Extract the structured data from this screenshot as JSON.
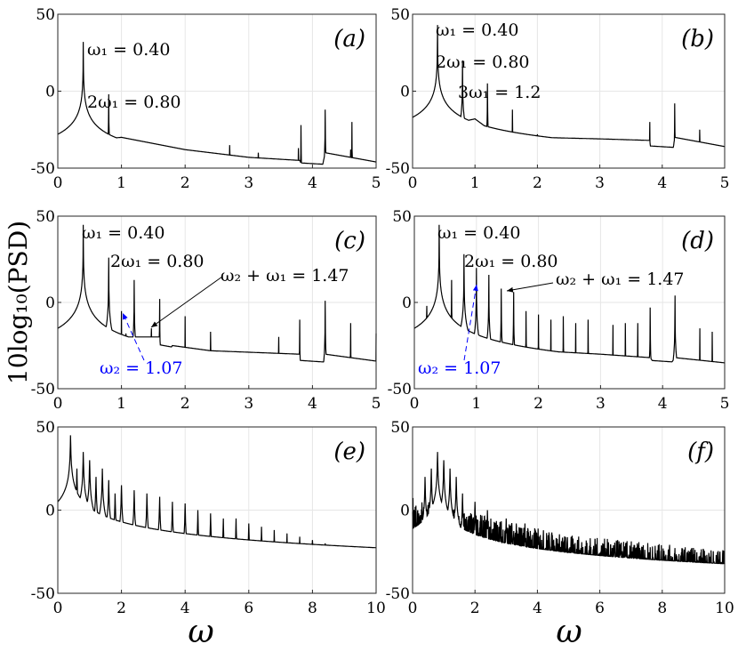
{
  "figure": {
    "ylabel": "10log₁₀(PSD)",
    "xlabel_left": "ω",
    "xlabel_right": "ω"
  },
  "colors": {
    "line": "#000000",
    "annotation_blue": "#0000ff",
    "grid": "#e6e6e6"
  },
  "chart_data": [
    {
      "id": "a",
      "type": "line",
      "panel_label": "(a)",
      "xlim": [
        0,
        5
      ],
      "ylim": [
        -50,
        50
      ],
      "grid": true,
      "xticks": [
        0,
        1,
        2,
        3,
        4,
        5
      ],
      "yticks": [
        -50,
        0,
        50
      ],
      "baseline": [
        [
          0,
          -37
        ],
        [
          0.2,
          -33
        ],
        [
          1,
          -30
        ],
        [
          2,
          -38
        ],
        [
          3,
          -43
        ],
        [
          3.8,
          -45
        ],
        [
          3.85,
          -50
        ],
        [
          4.15,
          -50
        ],
        [
          4.2,
          -40
        ],
        [
          5,
          -46
        ]
      ],
      "peaks": [
        [
          0.4,
          32
        ],
        [
          0.8,
          -2
        ],
        [
          1.2,
          -32
        ],
        [
          2.7,
          -35
        ],
        [
          3.15,
          -40
        ],
        [
          3.78,
          -37
        ],
        [
          3.82,
          -22
        ],
        [
          4.2,
          -12
        ],
        [
          4.6,
          -38
        ],
        [
          4.62,
          -20
        ]
      ],
      "annotations": [
        {
          "text": "ω₁ = 0.40",
          "color": "#000000"
        },
        {
          "text": "2ω₁ = 0.80",
          "color": "#000000"
        }
      ]
    },
    {
      "id": "b",
      "type": "line",
      "panel_label": "(b)",
      "xlim": [
        0,
        5
      ],
      "ylim": [
        -50,
        50
      ],
      "grid": true,
      "xticks": [
        0,
        1,
        2,
        3,
        4,
        5
      ],
      "yticks": [
        -50,
        0,
        50
      ],
      "baseline": [
        [
          0,
          -27
        ],
        [
          1,
          -18
        ],
        [
          1.2,
          -24
        ],
        [
          1.6,
          -28
        ],
        [
          2,
          -30
        ],
        [
          3,
          -31
        ],
        [
          3.8,
          -32
        ],
        [
          3.85,
          -50
        ],
        [
          4.15,
          -45
        ],
        [
          4.2,
          -30
        ],
        [
          5,
          -36
        ]
      ],
      "peaks": [
        [
          0.4,
          43
        ],
        [
          0.8,
          20
        ],
        [
          1.2,
          5
        ],
        [
          1.6,
          -12
        ],
        [
          2.0,
          -28
        ],
        [
          3.8,
          -20
        ],
        [
          4.2,
          -8
        ],
        [
          4.6,
          -25
        ]
      ],
      "annotations": [
        {
          "text": "ω₁ = 0.40",
          "color": "#000000"
        },
        {
          "text": "2ω₁ = 0.80",
          "color": "#000000"
        },
        {
          "text": "3ω₁ = 1.2",
          "color": "#000000"
        }
      ]
    },
    {
      "id": "c",
      "type": "line",
      "panel_label": "(c)",
      "xlim": [
        0,
        5
      ],
      "ylim": [
        -50,
        50
      ],
      "grid": true,
      "xticks": [
        0,
        1,
        2,
        3,
        4,
        5
      ],
      "yticks": [
        -50,
        0,
        50
      ],
      "baseline": [
        [
          0,
          -25
        ],
        [
          0.3,
          -10
        ],
        [
          1,
          -20
        ],
        [
          1.6,
          -20
        ],
        [
          1.62,
          -35
        ],
        [
          1.8,
          -25
        ],
        [
          2.4,
          -28
        ],
        [
          3.8,
          -30
        ],
        [
          3.85,
          -50
        ],
        [
          4.15,
          -45
        ],
        [
          4.2,
          -30
        ],
        [
          5,
          -34
        ]
      ],
      "peaks": [
        [
          0.4,
          45
        ],
        [
          0.6,
          -15
        ],
        [
          0.8,
          26
        ],
        [
          1.0,
          -5
        ],
        [
          1.07,
          -18
        ],
        [
          1.2,
          13
        ],
        [
          1.47,
          -15
        ],
        [
          1.6,
          2
        ],
        [
          2.0,
          -8
        ],
        [
          2.2,
          -35
        ],
        [
          2.4,
          -17
        ],
        [
          3.47,
          -20
        ],
        [
          3.8,
          -10
        ],
        [
          4.2,
          1
        ],
        [
          4.6,
          -12
        ],
        [
          5,
          -18
        ]
      ],
      "annotations": [
        {
          "text": "ω₁ = 0.40",
          "color": "#000000"
        },
        {
          "text": "2ω₁ = 0.80",
          "color": "#000000"
        },
        {
          "text": "ω₂ + ω₁ = 1.47",
          "color": "#000000"
        },
        {
          "text": "ω₂ = 1.07",
          "color": "#0000ff"
        }
      ]
    },
    {
      "id": "d",
      "type": "line",
      "panel_label": "(d)",
      "xlim": [
        0,
        5
      ],
      "ylim": [
        -50,
        50
      ],
      "grid": true,
      "xticks": [
        0,
        1,
        2,
        3,
        4,
        5
      ],
      "yticks": [
        -50,
        0,
        50
      ],
      "baseline": [
        [
          0,
          -25
        ],
        [
          1,
          -18
        ],
        [
          1.5,
          -30
        ],
        [
          2,
          -28
        ],
        [
          3,
          -30
        ],
        [
          3.8,
          -32
        ],
        [
          4,
          -42
        ],
        [
          4.2,
          -32
        ],
        [
          5,
          -35
        ]
      ],
      "peaks": [
        [
          0.2,
          -2
        ],
        [
          0.4,
          45
        ],
        [
          0.6,
          13
        ],
        [
          0.8,
          28
        ],
        [
          1.0,
          20
        ],
        [
          1.2,
          16
        ],
        [
          1.4,
          8
        ],
        [
          1.6,
          6
        ],
        [
          1.8,
          -5
        ],
        [
          2.0,
          -7
        ],
        [
          2.2,
          -10
        ],
        [
          2.4,
          -8
        ],
        [
          2.6,
          -12
        ],
        [
          2.8,
          -10
        ],
        [
          3.2,
          -13
        ],
        [
          3.4,
          -12
        ],
        [
          3.6,
          -12
        ],
        [
          3.8,
          -3
        ],
        [
          4.2,
          4
        ],
        [
          4.6,
          -15
        ],
        [
          4.8,
          -17
        ]
      ],
      "annotations": [
        {
          "text": "ω₁ = 0.40",
          "color": "#000000"
        },
        {
          "text": "2ω₁ = 0.80",
          "color": "#000000"
        },
        {
          "text": "ω₂ + ω₁ = 1.47",
          "color": "#000000"
        },
        {
          "text": "ω₂ = 1.07",
          "color": "#0000ff"
        }
      ]
    },
    {
      "id": "e",
      "type": "line",
      "panel_label": "(e)",
      "xlim": [
        0,
        10
      ],
      "ylim": [
        -50,
        50
      ],
      "grid": true,
      "xticks": [
        0,
        2,
        4,
        6,
        8,
        10
      ],
      "yticks": [
        -50,
        0,
        50
      ],
      "baseline": [
        [
          0,
          -20
        ],
        [
          2,
          -22
        ],
        [
          5,
          -35
        ],
        [
          10,
          -45
        ]
      ],
      "peaks": [
        [
          0.2,
          10
        ],
        [
          0.4,
          45
        ],
        [
          0.6,
          25
        ],
        [
          0.8,
          35
        ],
        [
          1.0,
          30
        ],
        [
          1.2,
          20
        ],
        [
          1.4,
          25
        ],
        [
          1.6,
          18
        ],
        [
          1.8,
          10
        ],
        [
          2.0,
          15
        ],
        [
          2.4,
          12
        ],
        [
          2.8,
          10
        ],
        [
          3.2,
          8
        ],
        [
          3.6,
          5
        ],
        [
          4.0,
          4
        ],
        [
          4.4,
          0
        ],
        [
          4.8,
          -2
        ],
        [
          5.2,
          -5
        ],
        [
          5.6,
          -5
        ],
        [
          6.0,
          -8
        ],
        [
          6.4,
          -10
        ],
        [
          6.8,
          -12
        ],
        [
          7.2,
          -14
        ],
        [
          7.6,
          -16
        ],
        [
          8.0,
          -18
        ],
        [
          8.4,
          -20
        ],
        [
          8.8,
          -22
        ],
        [
          9.2,
          -24
        ],
        [
          9.6,
          -26
        ]
      ],
      "annotations": []
    },
    {
      "id": "f",
      "type": "line",
      "panel_label": "(f)",
      "xlim": [
        0,
        10
      ],
      "ylim": [
        -50,
        50
      ],
      "grid": true,
      "xticks": [
        0,
        2,
        4,
        6,
        8,
        10
      ],
      "yticks": [
        -50,
        0,
        50
      ],
      "baseline": [
        [
          0,
          -5
        ],
        [
          2,
          -15
        ],
        [
          5,
          -28
        ],
        [
          10,
          -37
        ]
      ],
      "peaks": [
        [
          0.4,
          20
        ],
        [
          0.6,
          25
        ],
        [
          0.8,
          35
        ],
        [
          1.0,
          30
        ],
        [
          1.2,
          25
        ],
        [
          1.4,
          20
        ],
        [
          1.6,
          10
        ],
        [
          2.0,
          5
        ],
        [
          2.4,
          0
        ],
        [
          3.0,
          -5
        ],
        [
          3.6,
          -8
        ]
      ],
      "annotations": []
    }
  ]
}
